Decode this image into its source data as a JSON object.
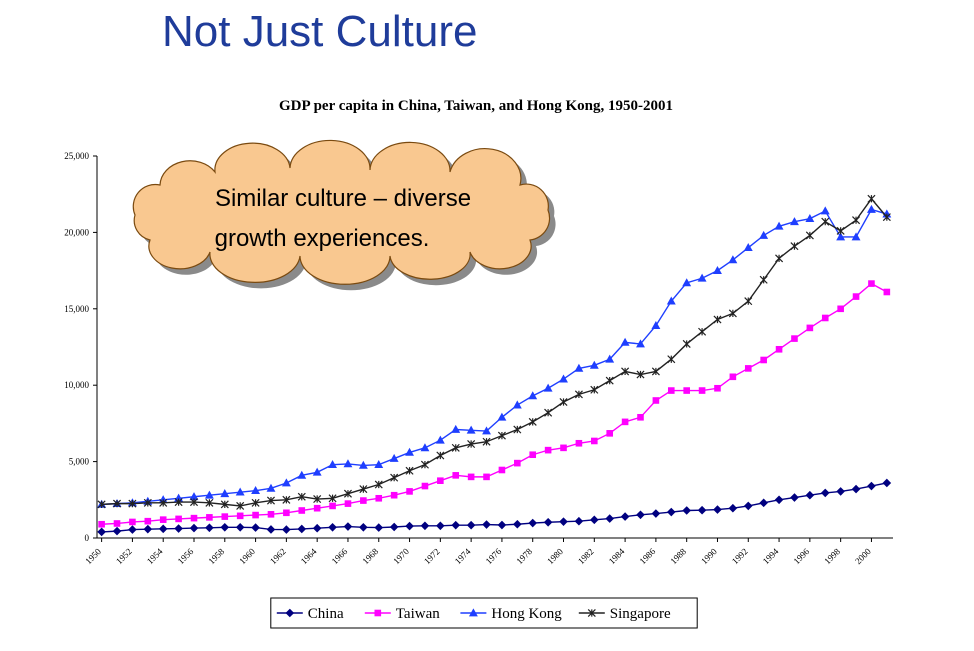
{
  "slide": {
    "title": "Not Just Culture"
  },
  "chart_data": {
    "type": "line",
    "title": "GDP per capita in China, Taiwan, and Hong Kong, 1950-2001",
    "annotation": [
      "Similar culture – diverse",
      "growth experiences."
    ],
    "x": [
      1950,
      1951,
      1952,
      1953,
      1954,
      1955,
      1956,
      1957,
      1958,
      1959,
      1960,
      1961,
      1962,
      1963,
      1964,
      1965,
      1966,
      1967,
      1968,
      1969,
      1970,
      1971,
      1972,
      1973,
      1974,
      1975,
      1976,
      1977,
      1978,
      1979,
      1980,
      1981,
      1982,
      1983,
      1984,
      1985,
      1986,
      1987,
      1988,
      1989,
      1990,
      1991,
      1992,
      1993,
      1994,
      1995,
      1996,
      1997,
      1998,
      1999,
      2000,
      2001
    ],
    "xlim": [
      1949.7,
      2001.4
    ],
    "xticks": [
      1950,
      1952,
      1954,
      1956,
      1958,
      1960,
      1962,
      1964,
      1966,
      1968,
      1970,
      1972,
      1974,
      1976,
      1978,
      1980,
      1982,
      1984,
      1986,
      1988,
      1990,
      1992,
      1994,
      1996,
      1998,
      2000
    ],
    "ylim": [
      0,
      25000
    ],
    "yticks": [
      0,
      {
        "value": 5000,
        "label": "5,000"
      },
      {
        "value": 10000,
        "label": "10,000"
      },
      {
        "value": 15000,
        "label": "15,000"
      },
      {
        "value": 20000,
        "label": "20,000"
      },
      {
        "value": 25000,
        "label": "25,000"
      }
    ],
    "grid": false,
    "legend": "bottom",
    "series": [
      {
        "name": "China",
        "color": "#000080",
        "marker": "diamond",
        "values": [
          400,
          450,
          550,
          580,
          600,
          620,
          650,
          670,
          700,
          700,
          680,
          560,
          550,
          590,
          640,
          700,
          750,
          700,
          680,
          720,
          780,
          800,
          800,
          840,
          840,
          880,
          850,
          900,
          980,
          1030,
          1070,
          1100,
          1190,
          1270,
          1400,
          1520,
          1600,
          1700,
          1800,
          1820,
          1860,
          1950,
          2100,
          2300,
          2500,
          2650,
          2800,
          2950,
          3050,
          3200,
          3400,
          3600
        ]
      },
      {
        "name": "Taiwan",
        "color": "#ff00ff",
        "marker": "square",
        "values": [
          900,
          950,
          1050,
          1100,
          1200,
          1250,
          1300,
          1350,
          1400,
          1450,
          1500,
          1550,
          1650,
          1800,
          1950,
          2100,
          2250,
          2450,
          2600,
          2800,
          3050,
          3400,
          3750,
          4100,
          4000,
          4000,
          4450,
          4900,
          5450,
          5750,
          5900,
          6200,
          6350,
          6850,
          7600,
          7900,
          9000,
          9650,
          9650,
          9650,
          9800,
          10550,
          11100,
          11650,
          12350,
          13050,
          13750,
          14400,
          15000,
          15800,
          16650,
          16100
        ]
      },
      {
        "name": "Hong Kong",
        "color": "#1f3fff",
        "marker": "triangle",
        "values": [
          2200,
          2250,
          2300,
          2400,
          2500,
          2600,
          2700,
          2800,
          2900,
          3000,
          3100,
          3250,
          3600,
          4100,
          4300,
          4800,
          4850,
          4750,
          4800,
          5200,
          5600,
          5900,
          6400,
          7100,
          7050,
          7000,
          7900,
          8700,
          9300,
          9800,
          10400,
          11100,
          11300,
          11700,
          12800,
          12700,
          13900,
          15500,
          16700,
          17000,
          17500,
          18200,
          19000,
          19800,
          20400,
          20700,
          20900,
          21400,
          19700,
          19700,
          21500,
          21200
        ]
      },
      {
        "name": "Singapore",
        "color": "#222222",
        "marker": "star",
        "values": [
          2200,
          2250,
          2250,
          2300,
          2300,
          2350,
          2350,
          2300,
          2200,
          2100,
          2300,
          2450,
          2500,
          2700,
          2550,
          2600,
          2900,
          3200,
          3500,
          3950,
          4400,
          4800,
          5400,
          5900,
          6150,
          6300,
          6700,
          7100,
          7600,
          8200,
          8900,
          9400,
          9700,
          10300,
          10900,
          10700,
          10900,
          11700,
          12700,
          13500,
          14300,
          14700,
          15500,
          16900,
          18300,
          19100,
          19800,
          20700,
          20100,
          20800,
          22200,
          21000
        ]
      }
    ]
  }
}
